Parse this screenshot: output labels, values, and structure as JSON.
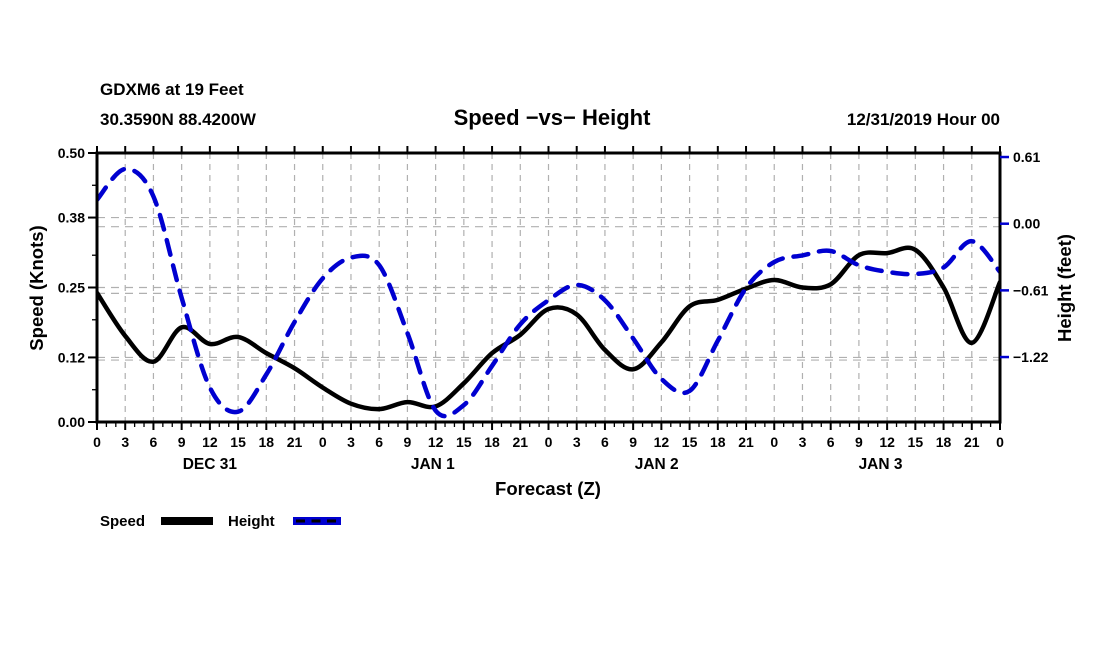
{
  "header": {
    "station": "GDXM6 at 19 Feet",
    "location": "30.3590N 88.4200W",
    "title": "Speed −vs− Height",
    "datetime": "12/31/2019 Hour 00"
  },
  "legend": {
    "items": [
      {
        "label": "Speed",
        "color": "#000000",
        "style": "solid"
      },
      {
        "label": "Height",
        "color": "#0000d0",
        "style": "dashed"
      }
    ]
  },
  "chart_data": {
    "type": "line",
    "title": "Speed −vs− Height",
    "xlabel": "Forecast (Z)",
    "ylabel_left": "Speed (Knots)",
    "ylabel_right": "Height (feet)",
    "x_hours": [
      0,
      3,
      6,
      9,
      12,
      15,
      18,
      21,
      24,
      27,
      30,
      33,
      36,
      39,
      42,
      45,
      48,
      51,
      54,
      57,
      60,
      63,
      66,
      69,
      72,
      75,
      78,
      81,
      84,
      87,
      90,
      93,
      96
    ],
    "x_tick_labels": [
      "0",
      "3",
      "6",
      "9",
      "12",
      "15",
      "18",
      "21",
      "0",
      "3",
      "6",
      "9",
      "12",
      "15",
      "18",
      "21",
      "0",
      "3",
      "6",
      "9",
      "12",
      "15",
      "18",
      "21",
      "0",
      "3",
      "6",
      "9",
      "12",
      "15",
      "18",
      "21",
      "0"
    ],
    "day_labels": [
      {
        "label": "DEC 31",
        "center_hour": 12
      },
      {
        "label": "JAN 1",
        "center_hour": 35.7
      },
      {
        "label": "JAN 2",
        "center_hour": 59.5
      },
      {
        "label": "JAN 3",
        "center_hour": 83.3
      }
    ],
    "left_axis": {
      "min": 0.0,
      "max": 0.5,
      "ticks": [
        {
          "label": "0.00",
          "value": 0.0
        },
        {
          "label": "0.12",
          "value": 0.12
        },
        {
          "label": "0.25",
          "value": 0.25
        },
        {
          "label": "0.38",
          "value": 0.38
        },
        {
          "label": "0.50",
          "value": 0.5
        }
      ],
      "minor_ticks": [
        0.06,
        0.19,
        0.31,
        0.44
      ]
    },
    "right_axis": {
      "min": -1.83,
      "max": 0.645,
      "ticks": [
        {
          "label": "0.61",
          "value": 0.61
        },
        {
          "label": "0.00",
          "value": 0.0
        },
        {
          "label": "−0.61",
          "value": -0.61
        },
        {
          "label": "−1.22",
          "value": -1.22
        }
      ]
    },
    "grid": {
      "vertical_every_hours": 3,
      "horizontal_speed_values": [
        0.38,
        0.25,
        0.12
      ],
      "horizontal_height_values": [
        0.0,
        -0.61,
        -1.22
      ],
      "color": "#b0b0b0"
    },
    "series": [
      {
        "name": "Speed",
        "axis": "left",
        "color": "#000000",
        "line_style": "solid",
        "units": "Knots",
        "values": [
          0.24,
          0.16,
          0.112,
          0.176,
          0.145,
          0.158,
          0.128,
          0.1,
          0.064,
          0.034,
          0.024,
          0.037,
          0.029,
          0.072,
          0.128,
          0.162,
          0.21,
          0.2,
          0.134,
          0.098,
          0.148,
          0.215,
          0.227,
          0.248,
          0.264,
          0.25,
          0.256,
          0.31,
          0.314,
          0.32,
          0.25,
          0.147,
          0.26
        ]
      },
      {
        "name": "Height",
        "axis": "right",
        "color": "#0000d0",
        "line_style": "dashed",
        "units": "feet",
        "values": [
          0.22,
          0.5,
          0.25,
          -0.68,
          -1.5,
          -1.72,
          -1.38,
          -0.9,
          -0.5,
          -0.31,
          -0.38,
          -1.0,
          -1.71,
          -1.66,
          -1.3,
          -0.92,
          -0.7,
          -0.56,
          -0.7,
          -1.05,
          -1.42,
          -1.53,
          -1.07,
          -0.59,
          -0.35,
          -0.29,
          -0.25,
          -0.38,
          -0.44,
          -0.46,
          -0.4,
          -0.16,
          -0.44
        ]
      }
    ]
  }
}
